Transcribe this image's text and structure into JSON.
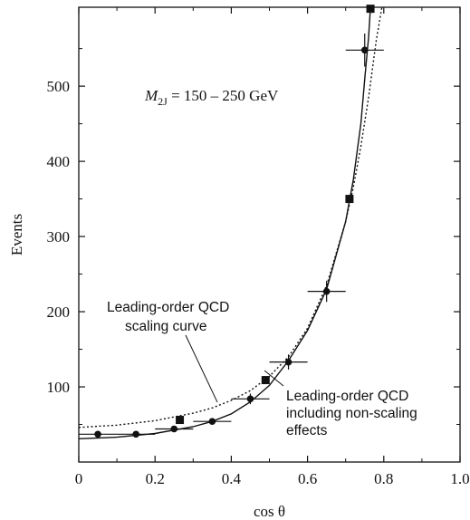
{
  "chart_data": {
    "type": "scatter",
    "title": "",
    "xlabel": "cos θ",
    "ylabel": "Events",
    "xlim": [
      0,
      1.0
    ],
    "ylim": [
      0,
      605
    ],
    "x_ticks": [
      0,
      0.2,
      0.4,
      0.6,
      0.8,
      1.0
    ],
    "x_tick_labels": [
      "0",
      "0.2",
      "0.4",
      "0.6",
      "0.8",
      "1.0"
    ],
    "y_ticks": [
      100,
      200,
      300,
      400,
      500
    ],
    "y_tick_labels": [
      "100",
      "200",
      "300",
      "400",
      "500"
    ],
    "grid": false,
    "condition_label": {
      "var": "M",
      "sub": "2J",
      "text": " = 150 – 250 GeV"
    },
    "series": [
      {
        "marker": "circle",
        "points": [
          {
            "x": 0.05,
            "y": 37,
            "xerr": 0.05,
            "yerr": 0
          },
          {
            "x": 0.15,
            "y": 37,
            "xerr": 0.05,
            "yerr": 0
          },
          {
            "x": 0.25,
            "y": 44,
            "xerr": 0.05,
            "yerr": 3
          },
          {
            "x": 0.35,
            "y": 54,
            "xerr": 0.05,
            "yerr": 3
          },
          {
            "x": 0.45,
            "y": 84,
            "xerr": 0.05,
            "yerr": 7
          },
          {
            "x": 0.55,
            "y": 133,
            "xerr": 0.05,
            "yerr": 10
          },
          {
            "x": 0.65,
            "y": 227,
            "xerr": 0.05,
            "yerr": 14
          },
          {
            "x": 0.75,
            "y": 548,
            "xerr": 0.05,
            "yerr": 22
          }
        ]
      },
      {
        "marker": "square",
        "points": [
          {
            "x": 0.265,
            "y": 56
          },
          {
            "x": 0.49,
            "y": 109
          },
          {
            "x": 0.71,
            "y": 350
          },
          {
            "x": 0.765,
            "y": 603
          }
        ]
      },
      {
        "line": "solid",
        "label": [
          "Leading-order QCD",
          "including non-scaling",
          "effects"
        ],
        "x": [
          0,
          0.1,
          0.2,
          0.3,
          0.35,
          0.4,
          0.45,
          0.5,
          0.55,
          0.6,
          0.65,
          0.7,
          0.72,
          0.74,
          0.75,
          0.76,
          0.765
        ],
        "y": [
          31,
          33,
          38,
          47,
          54,
          64,
          80,
          102,
          135,
          175,
          230,
          320,
          375,
          450,
          510,
          565,
          605
        ]
      },
      {
        "line": "dotted",
        "label": [
          "Leading-order QCD",
          "scaling curve"
        ],
        "x": [
          0,
          0.1,
          0.2,
          0.3,
          0.35,
          0.4,
          0.45,
          0.5,
          0.55,
          0.6,
          0.65,
          0.7,
          0.72,
          0.74,
          0.76,
          0.78,
          0.795
        ],
        "y": [
          46,
          49,
          55,
          65,
          72,
          82,
          95,
          114,
          140,
          178,
          235,
          320,
          365,
          420,
          485,
          560,
          605
        ]
      }
    ]
  }
}
